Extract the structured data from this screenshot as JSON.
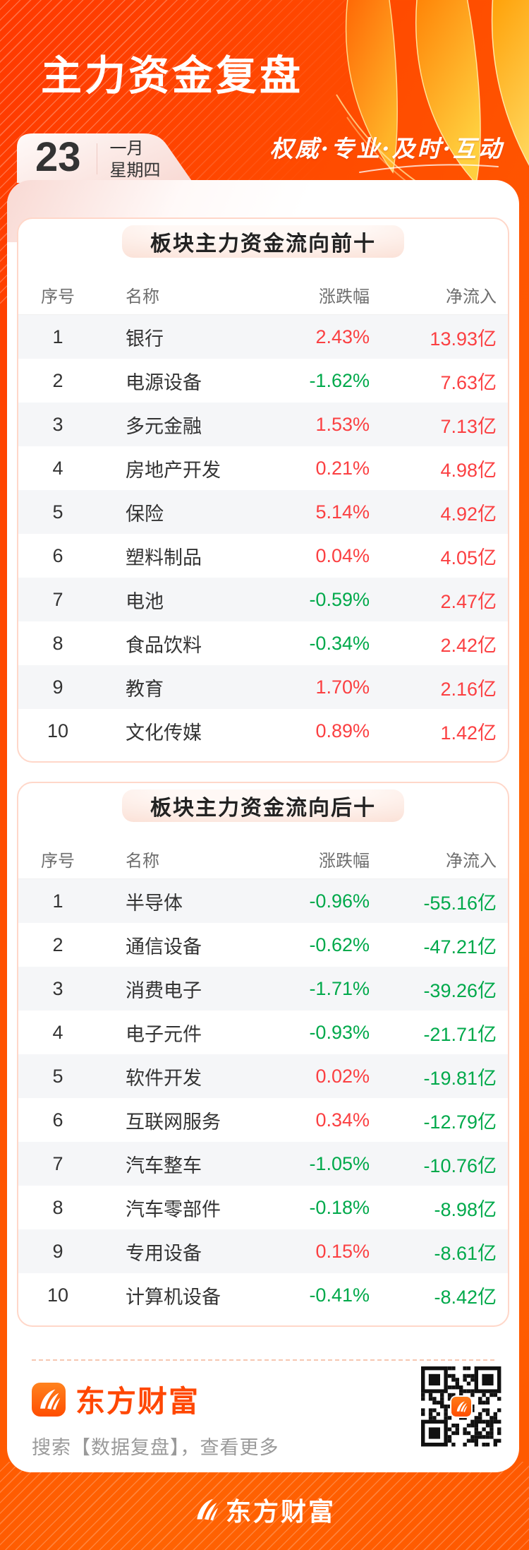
{
  "header": {
    "title": "主力资金复盘",
    "slogan": "权威·专业·及时·互动",
    "calendar": {
      "day": "23",
      "month": "一月",
      "weekday": "星期四"
    }
  },
  "tables": [
    {
      "title": "板块主力资金流向前十",
      "columns": {
        "index": "序号",
        "name": "名称",
        "change": "涨跌幅",
        "net": "净流入"
      },
      "rows": [
        {
          "index": "1",
          "name": "银行",
          "change": "2.43%",
          "change_color": "red",
          "net": "13.93亿",
          "net_color": "red"
        },
        {
          "index": "2",
          "name": "电源设备",
          "change": "-1.62%",
          "change_color": "green",
          "net": "7.63亿",
          "net_color": "red"
        },
        {
          "index": "3",
          "name": "多元金融",
          "change": "1.53%",
          "change_color": "red",
          "net": "7.13亿",
          "net_color": "red"
        },
        {
          "index": "4",
          "name": "房地产开发",
          "change": "0.21%",
          "change_color": "red",
          "net": "4.98亿",
          "net_color": "red"
        },
        {
          "index": "5",
          "name": "保险",
          "change": "5.14%",
          "change_color": "red",
          "net": "4.92亿",
          "net_color": "red"
        },
        {
          "index": "6",
          "name": "塑料制品",
          "change": "0.04%",
          "change_color": "red",
          "net": "4.05亿",
          "net_color": "red"
        },
        {
          "index": "7",
          "name": "电池",
          "change": "-0.59%",
          "change_color": "green",
          "net": "2.47亿",
          "net_color": "red"
        },
        {
          "index": "8",
          "name": "食品饮料",
          "change": "-0.34%",
          "change_color": "green",
          "net": "2.42亿",
          "net_color": "red"
        },
        {
          "index": "9",
          "name": "教育",
          "change": "1.70%",
          "change_color": "red",
          "net": "2.16亿",
          "net_color": "red"
        },
        {
          "index": "10",
          "name": "文化传媒",
          "change": "0.89%",
          "change_color": "red",
          "net": "1.42亿",
          "net_color": "red"
        }
      ]
    },
    {
      "title": "板块主力资金流向后十",
      "columns": {
        "index": "序号",
        "name": "名称",
        "change": "涨跌幅",
        "net": "净流入"
      },
      "rows": [
        {
          "index": "1",
          "name": "半导体",
          "change": "-0.96%",
          "change_color": "green",
          "net": "-55.16亿",
          "net_color": "green"
        },
        {
          "index": "2",
          "name": "通信设备",
          "change": "-0.62%",
          "change_color": "green",
          "net": "-47.21亿",
          "net_color": "green"
        },
        {
          "index": "3",
          "name": "消费电子",
          "change": "-1.71%",
          "change_color": "green",
          "net": "-39.26亿",
          "net_color": "green"
        },
        {
          "index": "4",
          "name": "电子元件",
          "change": "-0.93%",
          "change_color": "green",
          "net": "-21.71亿",
          "net_color": "green"
        },
        {
          "index": "5",
          "name": "软件开发",
          "change": "0.02%",
          "change_color": "red",
          "net": "-19.81亿",
          "net_color": "green"
        },
        {
          "index": "6",
          "name": "互联网服务",
          "change": "0.34%",
          "change_color": "red",
          "net": "-12.79亿",
          "net_color": "green"
        },
        {
          "index": "7",
          "name": "汽车整车",
          "change": "-1.05%",
          "change_color": "green",
          "net": "-10.76亿",
          "net_color": "green"
        },
        {
          "index": "8",
          "name": "汽车零部件",
          "change": "-0.18%",
          "change_color": "green",
          "net": "-8.98亿",
          "net_color": "green"
        },
        {
          "index": "9",
          "name": "专用设备",
          "change": "0.15%",
          "change_color": "red",
          "net": "-8.61亿",
          "net_color": "green"
        },
        {
          "index": "10",
          "name": "计算机设备",
          "change": "-0.41%",
          "change_color": "green",
          "net": "-8.42亿",
          "net_color": "green"
        }
      ]
    }
  ],
  "footer": {
    "brand": "东方财富",
    "hint": "搜索【数据复盘】，查看更多"
  },
  "bottom_bar": {
    "brand": "东方财富"
  },
  "colors": {
    "red": "#fb4042",
    "green": "#00a94b",
    "brand_orange": "#ff4703",
    "background": "#ff4e00"
  }
}
